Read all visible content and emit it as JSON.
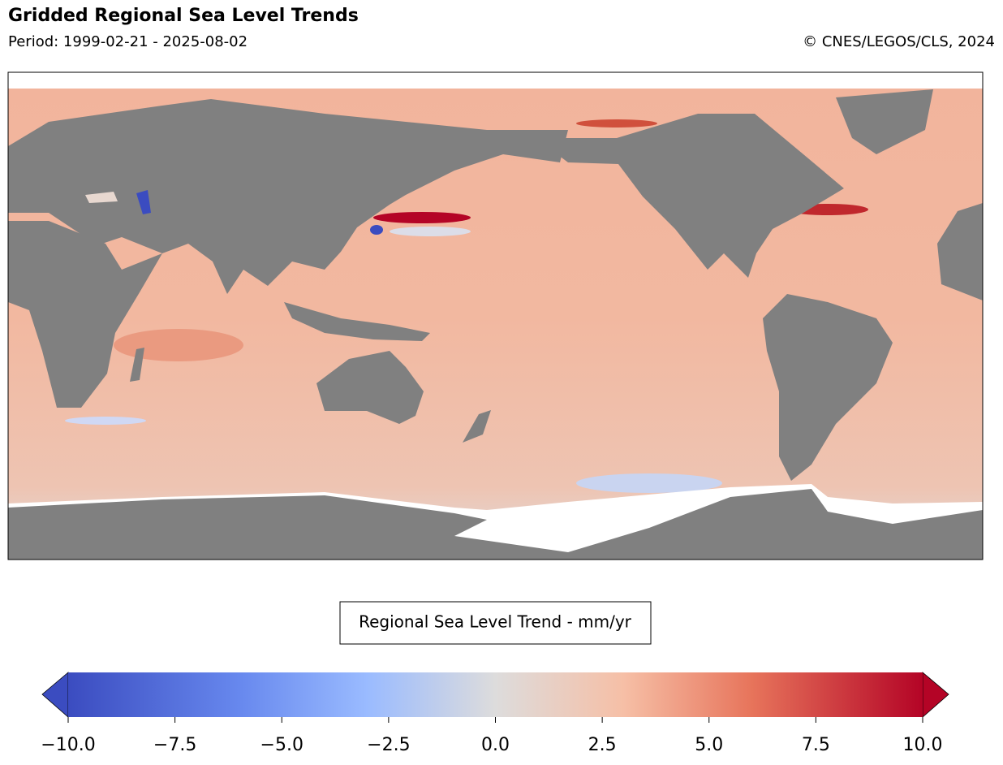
{
  "header": {
    "title": "Gridded Regional Sea Level Trends",
    "period": "Period: 1999-02-21 - 2025-08-02",
    "credit": "© CNES/LEGOS/CLS, 2024"
  },
  "colorbar": {
    "label": "Regional Sea Level Trend - mm/yr",
    "lim": [
      -10,
      10
    ],
    "ticks": [
      {
        "value": -10,
        "label": "−10.0"
      },
      {
        "value": -7.5,
        "label": "−7.5"
      },
      {
        "value": -5,
        "label": "−5.0"
      },
      {
        "value": -2.5,
        "label": "−2.5"
      },
      {
        "value": 0,
        "label": "0.0"
      },
      2.5,
      {
        "value": 5,
        "label": "5.0"
      },
      {
        "value": 7.5,
        "label": "7.5"
      },
      {
        "value": 10,
        "label": "10.0"
      }
    ]
  }
}
